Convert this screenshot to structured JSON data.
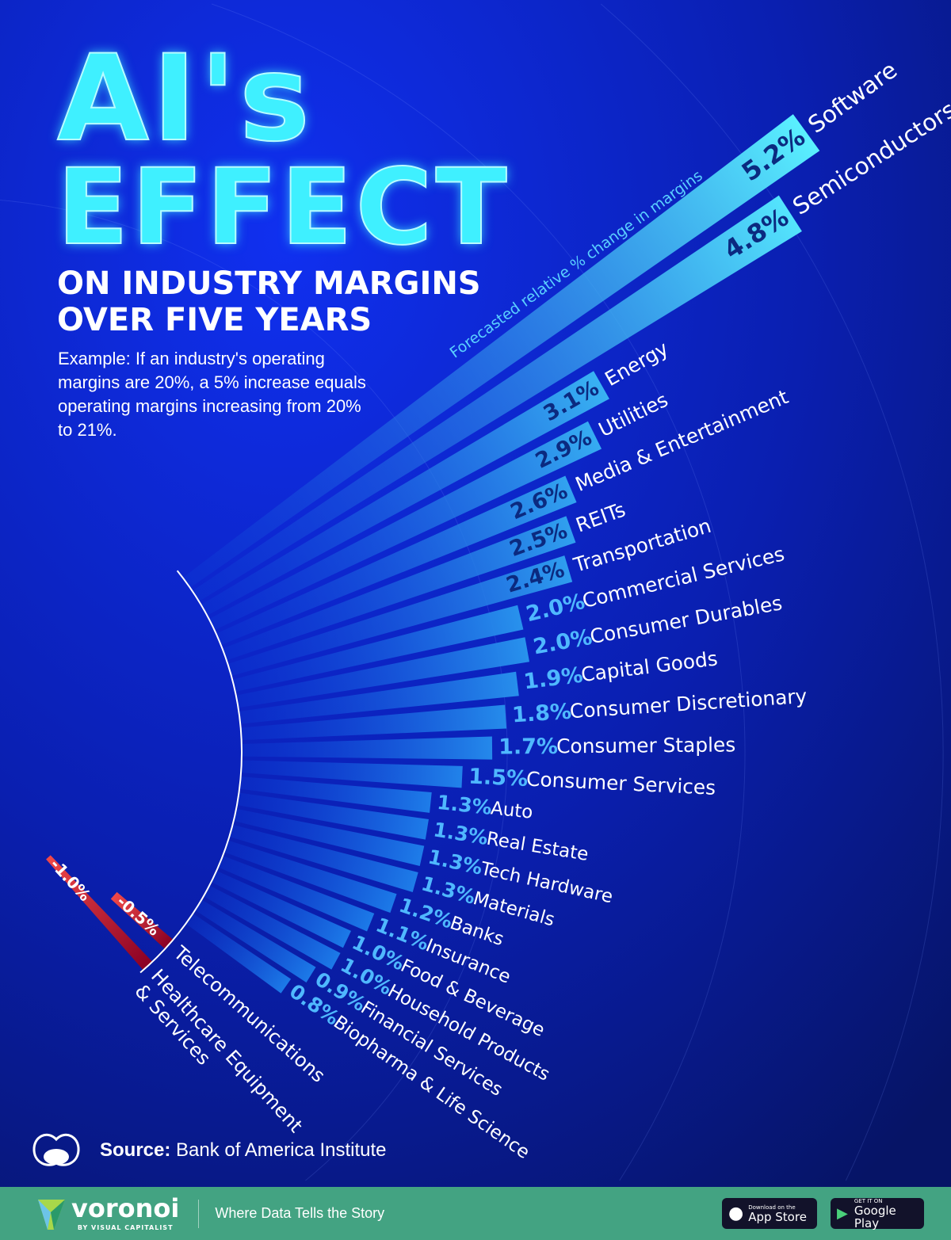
{
  "title": {
    "line1": "AI's",
    "line2": "EFFECT",
    "subtitle": "ON INDUSTRY MARGINS OVER FIVE YEARS"
  },
  "example": "Example: If an industry's operating margins are 20%, a 5% increase equals operating margins increasing from 20% to 21%.",
  "chart_data": {
    "type": "bar",
    "layout": "radial",
    "axis_label": "Forecasted relative % change in margins",
    "unit": "%",
    "categories": [
      "Software",
      "Semiconductors",
      "Energy",
      "Utilities",
      "Media & Entertainment",
      "REITs",
      "Transportation",
      "Commercial Services",
      "Consumer Durables",
      "Capital Goods",
      "Consumer Discretionary",
      "Consumer Staples",
      "Consumer Services",
      "Auto",
      "Real Estate",
      "Tech Hardware",
      "Materials",
      "Banks",
      "Insurance",
      "Food & Beverage",
      "Household Products",
      "Financial Services",
      "Biopharma & Life Science",
      "Telecommunications",
      "Healthcare Equipment & Services"
    ],
    "values": [
      5.2,
      4.8,
      3.1,
      2.9,
      2.6,
      2.5,
      2.4,
      2.0,
      2.0,
      1.9,
      1.8,
      1.7,
      1.5,
      1.3,
      1.3,
      1.3,
      1.3,
      1.2,
      1.1,
      1.0,
      1.0,
      0.9,
      0.8,
      -0.5,
      -1.0
    ],
    "labels": [
      "5.2%",
      "4.8%",
      "3.1%",
      "2.9%",
      "2.6%",
      "2.5%",
      "2.4%",
      "2.0%",
      "2.0%",
      "1.9%",
      "1.8%",
      "1.7%",
      "1.5%",
      "1.3%",
      "1.3%",
      "1.3%",
      "1.3%",
      "1.2%",
      "1.1%",
      "1.0%",
      "1.0%",
      "0.9%",
      "0.8%",
      "-0.5%",
      "-1.0%"
    ],
    "colors": {
      "positive_start": "#0b3bd6",
      "positive_end": "#5af0ff",
      "negative_start": "#8a0024",
      "negative_end": "#f04848",
      "value_text": "#4fb8ff",
      "value_text_inside": "#0b2a80"
    }
  },
  "source": {
    "label": "Source:",
    "text": "Bank of America Institute"
  },
  "footer": {
    "brand": "voronoi",
    "by": "BY VISUAL CAPITALIST",
    "tagline": "Where Data Tells the Story",
    "appstore": {
      "small": "Download on the",
      "big": "App Store"
    },
    "googleplay": {
      "small": "GET IT ON",
      "big": "Google Play"
    }
  }
}
